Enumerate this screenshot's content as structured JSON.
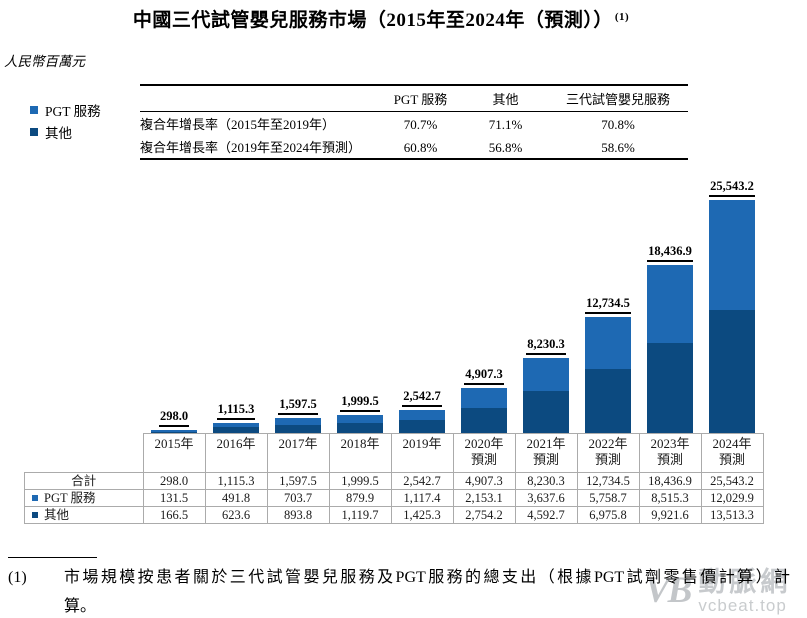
{
  "title": {
    "text": "中國三代試管嬰兒服務市場（2015年至2024年（預測））",
    "superscript": "(1)"
  },
  "unit_label": "人民幣百萬元",
  "colors": {
    "pgt_blue": "#1E69B3",
    "other_navy": "#0C4A80",
    "table_border": "#ABABAB",
    "watermark_gray": "#C7CACD"
  },
  "legend": {
    "items": [
      {
        "label": "PGT 服務",
        "color": "#1E69B3"
      },
      {
        "label": "其他",
        "color": "#0C4A80"
      }
    ]
  },
  "cagr_table": {
    "col_headers": [
      "PGT 服務",
      "其他",
      "三代試管嬰兒服務"
    ],
    "rows": [
      {
        "label": "複合年增長率（2015年至2019年）",
        "values": [
          "70.7%",
          "71.1%",
          "70.8%"
        ]
      },
      {
        "label": "複合年增長率（2019年至2024年預測）",
        "values": [
          "60.8%",
          "56.8%",
          "58.6%"
        ]
      }
    ]
  },
  "chart_data": {
    "type": "bar",
    "stacked": true,
    "title": "中國三代試管嬰兒服務市場（2015年至2024年（預測））",
    "unit": "人民幣百萬元",
    "grid": false,
    "legend_position": "top-left",
    "categories": [
      "2015年",
      "2016年",
      "2017年",
      "2018年",
      "2019年",
      "2020年預測",
      "2021年預測",
      "2022年預測",
      "2023年預測",
      "2024年預測"
    ],
    "series": [
      {
        "name": "PGT 服務",
        "stack_position": "top",
        "color": "#1E69B3",
        "values": [
          131.5,
          491.8,
          703.7,
          879.9,
          1117.4,
          2153.1,
          3637.6,
          5758.7,
          8515.3,
          12029.9
        ]
      },
      {
        "name": "其他",
        "stack_position": "bottom",
        "color": "#0C4A80",
        "values": [
          166.5,
          623.6,
          893.8,
          1119.7,
          1425.3,
          2754.2,
          4592.7,
          6975.8,
          9921.6,
          13513.3
        ]
      }
    ],
    "totals": [
      298.0,
      1115.3,
      1597.5,
      1999.5,
      2542.7,
      4907.3,
      8230.3,
      12734.5,
      18436.9,
      25543.2
    ],
    "total_labels": [
      "298.0",
      "1,115.3",
      "1,597.5",
      "1,999.5",
      "2,542.7",
      "4,907.3",
      "8,230.3",
      "12,734.5",
      "18,436.9",
      "25,543.2"
    ],
    "ymax": 25543.2
  },
  "data_table": {
    "columns": [
      {
        "year": "2015年",
        "suffix": ""
      },
      {
        "year": "2016年",
        "suffix": ""
      },
      {
        "year": "2017年",
        "suffix": ""
      },
      {
        "year": "2018年",
        "suffix": ""
      },
      {
        "year": "2019年",
        "suffix": ""
      },
      {
        "year": "2020年",
        "suffix": "預測"
      },
      {
        "year": "2021年",
        "suffix": "預測"
      },
      {
        "year": "2022年",
        "suffix": "預測"
      },
      {
        "year": "2023年",
        "suffix": "預測"
      },
      {
        "year": "2024年",
        "suffix": "預測"
      }
    ],
    "rows": [
      {
        "label": "合計",
        "marker_color": null,
        "values": [
          "298.0",
          "1,115.3",
          "1,597.5",
          "1,999.5",
          "2,542.7",
          "4,907.3",
          "8,230.3",
          "12,734.5",
          "18,436.9",
          "25,543.2"
        ]
      },
      {
        "label": "PGT 服務",
        "marker_color": "#1E69B3",
        "values": [
          "131.5",
          "491.8",
          "703.7",
          "879.9",
          "1,117.4",
          "2,153.1",
          "3,637.6",
          "5,758.7",
          "8,515.3",
          "12,029.9"
        ]
      },
      {
        "label": "其他",
        "marker_color": "#0C4A80",
        "values": [
          "166.5",
          "623.6",
          "893.8",
          "1,119.7",
          "1,425.3",
          "2,754.2",
          "4,592.7",
          "6,975.8",
          "9,921.6",
          "13,513.3"
        ]
      }
    ]
  },
  "footnote": {
    "number": "(1)",
    "text": "市場規模按患者關於三代試管嬰兒服務及PGT服務的總支出（根據PGT試劑零售價計算）計算。",
    "lines": [
      "市場規模按患者關於三代試管嬰兒服務及PGT服務的總支出（根據PGT試劑零售價計算）計",
      "算。"
    ]
  },
  "watermark": {
    "logo": "VB",
    "cn_text": "動脈網",
    "site": "vcbeat.top"
  }
}
